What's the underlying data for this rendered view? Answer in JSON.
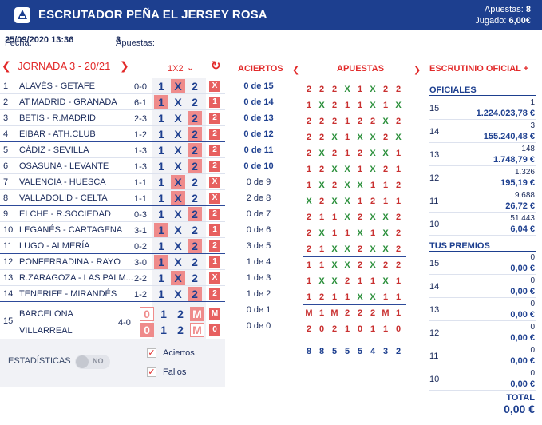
{
  "header": {
    "title": "ESCRUTADOR PEÑA EL JERSEY ROSA",
    "apuestas_label": "Apuestas:",
    "apuestas_value": "8",
    "jugado_label": "Jugado:",
    "jugado_value": "6,00€"
  },
  "info": {
    "fecha_label": "Fecha:",
    "fecha_value": "25/09/2020 13:36",
    "apuestas_label": "Apuestas:",
    "apuestas_value": "8"
  },
  "jornada": {
    "label": "JORNADA 3 - 20/21",
    "mode": "1X2",
    "prev_icon": "chevron-left",
    "next_icon": "chevron-right",
    "refresh_icon": "refresh"
  },
  "matches": [
    {
      "num": "1",
      "team": "ALAVÉS - GETAFE",
      "res": "0-0",
      "hit": "X",
      "box": "X",
      "box_color": "#e76060"
    },
    {
      "num": "2",
      "team": "AT.MADRID - GRANADA",
      "res": "6-1",
      "hit": "1",
      "box": "1",
      "box_color": "#e76060"
    },
    {
      "num": "3",
      "team": "BETIS - R.MADRID",
      "res": "2-3",
      "hit": "2",
      "box": "2",
      "box_color": "#e76060"
    },
    {
      "num": "4",
      "team": "EIBAR - ATH.CLUB",
      "res": "1-2",
      "hit": "2",
      "box": "2",
      "box_color": "#e76060"
    },
    {
      "num": "5",
      "team": "CÁDIZ - SEVILLA",
      "res": "1-3",
      "hit": "2",
      "box": "2",
      "box_color": "#e76060"
    },
    {
      "num": "6",
      "team": "OSASUNA - LEVANTE",
      "res": "1-3",
      "hit": "2",
      "box": "2",
      "box_color": "#e76060"
    },
    {
      "num": "7",
      "team": "VALENCIA - HUESCA",
      "res": "1-1",
      "hit": "X",
      "box": "X",
      "box_color": "#e76060"
    },
    {
      "num": "8",
      "team": "VALLADOLID - CELTA",
      "res": "1-1",
      "hit": "X",
      "box": "X",
      "box_color": "#e76060"
    },
    {
      "num": "9",
      "team": "ELCHE - R.SOCIEDAD",
      "res": "0-3",
      "hit": "2",
      "box": "2",
      "box_color": "#e76060"
    },
    {
      "num": "10",
      "team": "LEGANÉS - CARTAGENA",
      "res": "3-1",
      "hit": "1",
      "box": "1",
      "box_color": "#e76060"
    },
    {
      "num": "11",
      "team": "LUGO - ALMERÍA",
      "res": "0-2",
      "hit": "2",
      "box": "2",
      "box_color": "#e76060"
    },
    {
      "num": "12",
      "team": "PONFERRADINA - RAYO",
      "res": "3-0",
      "hit": "1",
      "box": "1",
      "box_color": "#e76060"
    },
    {
      "num": "13",
      "team": "R.ZARAGOZA - LAS PALM...",
      "res": "2-2",
      "hit": "X",
      "box": "X",
      "box_color": "#e76060"
    },
    {
      "num": "14",
      "team": "TENERIFE - MIRANDÉS",
      "res": "1-2",
      "hit": "2",
      "box": "2",
      "box_color": "#e76060"
    }
  ],
  "pleno": {
    "num": "15",
    "home": "BARCELONA",
    "away": "VILLARREAL",
    "res": "4-0",
    "home_cells": [
      "0",
      "1",
      "2",
      "M"
    ],
    "away_cells": [
      "0",
      "1",
      "2",
      "M"
    ],
    "home_box": "M",
    "away_box": "0"
  },
  "aciertos": {
    "header": "ACIERTOS",
    "values": [
      "0 de 15",
      "0 de 14",
      "0 de 13",
      "0 de 12",
      "0 de 11",
      "0 de 10",
      "0 de 9",
      "2 de 8",
      "0 de 7",
      "0 de 6",
      "3 de 5",
      "1 de 4",
      "1 de 3",
      "1 de 2",
      "0 de 1",
      "0 de 0"
    ]
  },
  "apuestas": {
    "header": "APUESTAS",
    "rows": [
      [
        "2",
        "2",
        "2",
        "X",
        "1",
        "X",
        "2",
        "2"
      ],
      [
        "1",
        "X",
        "2",
        "1",
        "1",
        "X",
        "1",
        "X"
      ],
      [
        "2",
        "2",
        "2",
        "1",
        "2",
        "2",
        "X",
        "2"
      ],
      [
        "2",
        "2",
        "X",
        "1",
        "X",
        "X",
        "2",
        "X"
      ],
      [
        "2",
        "X",
        "2",
        "1",
        "2",
        "X",
        "X",
        "1"
      ],
      [
        "1",
        "2",
        "X",
        "X",
        "1",
        "X",
        "2",
        "1"
      ],
      [
        "1",
        "X",
        "2",
        "X",
        "X",
        "1",
        "1",
        "2"
      ],
      [
        "X",
        "2",
        "X",
        "X",
        "1",
        "2",
        "1",
        "1"
      ],
      [
        "2",
        "1",
        "1",
        "X",
        "2",
        "X",
        "X",
        "2"
      ],
      [
        "2",
        "X",
        "1",
        "1",
        "X",
        "1",
        "X",
        "2"
      ],
      [
        "2",
        "1",
        "X",
        "X",
        "2",
        "X",
        "X",
        "2"
      ],
      [
        "1",
        "1",
        "X",
        "X",
        "2",
        "X",
        "2",
        "2"
      ],
      [
        "1",
        "X",
        "X",
        "2",
        "1",
        "1",
        "X",
        "1"
      ],
      [
        "1",
        "2",
        "1",
        "1",
        "X",
        "X",
        "1",
        "1"
      ],
      [
        "M",
        "1",
        "M",
        "2",
        "2",
        "2",
        "M",
        "1"
      ],
      [
        "2",
        "0",
        "2",
        "1",
        "0",
        "1",
        "1",
        "0"
      ]
    ],
    "totals": [
      "8",
      "8",
      "5",
      "5",
      "5",
      "4",
      "3",
      "2"
    ]
  },
  "escrutinio": {
    "header": "ESCRUTINIO OFICIAL +",
    "oficiales_title": "OFICIALES",
    "oficiales": [
      {
        "cat": "15",
        "count": "1",
        "amount": "1.224.023,78 €"
      },
      {
        "cat": "14",
        "count": "3",
        "amount": "155.240,48 €"
      },
      {
        "cat": "13",
        "count": "148",
        "amount": "1.748,79 €"
      },
      {
        "cat": "12",
        "count": "1.326",
        "amount": "195,19 €"
      },
      {
        "cat": "11",
        "count": "9.688",
        "amount": "26,72 €"
      },
      {
        "cat": "10",
        "count": "51.443",
        "amount": "6,04 €"
      }
    ],
    "premios_title": "TUS PREMIOS",
    "premios": [
      {
        "cat": "15",
        "count": "0",
        "amount": "0,00 €"
      },
      {
        "cat": "14",
        "count": "0",
        "amount": "0,00 €"
      },
      {
        "cat": "13",
        "count": "0",
        "amount": "0,00 €"
      },
      {
        "cat": "12",
        "count": "0",
        "amount": "0,00 €"
      },
      {
        "cat": "11",
        "count": "0",
        "amount": "0,00 €"
      },
      {
        "cat": "10",
        "count": "0",
        "amount": "0,00 €"
      }
    ],
    "total_label": "TOTAL",
    "total_value": "0,00 €"
  },
  "controls": {
    "estadisticas_label": "ESTADÍSTICAS",
    "toggle_state": "NO",
    "aciertos_label": "Aciertos",
    "fallos_label": "Fallos"
  },
  "colors": {
    "brand": "#1d3f8f",
    "accent": "#e22a2a",
    "hit": "#ef8b8b"
  }
}
